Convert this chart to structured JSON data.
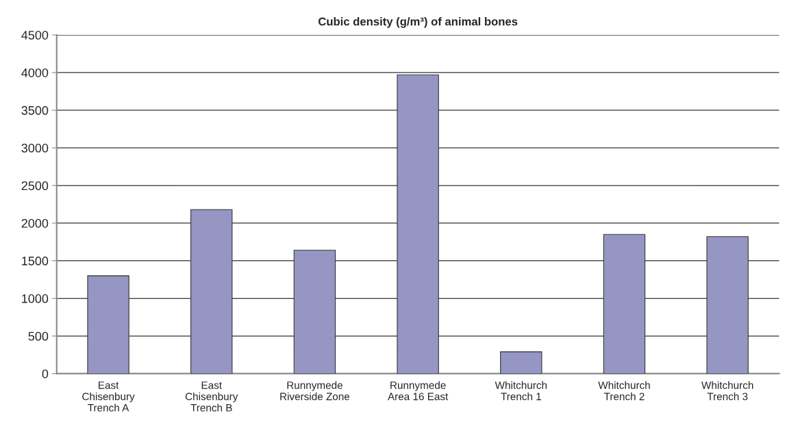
{
  "chart_data": {
    "type": "bar",
    "title": "Cubic density (g/m³) of animal bones",
    "categories": [
      "East\nChisenbury\nTrench A",
      "East\nChisenbury\nTrench B",
      "Runnymede\nRiverside Zone",
      "Runnymede\nArea 16 East",
      "Whitchurch\nTrench 1",
      "Whitchurch\nTrench 2",
      "Whitchurch\nTrench 3"
    ],
    "values": [
      1300,
      2180,
      1640,
      3970,
      290,
      1850,
      1820
    ],
    "color": "#9696c4",
    "ylim": [
      0,
      4500
    ],
    "yticks": [
      0,
      500,
      1000,
      1500,
      2000,
      2500,
      3000,
      3500,
      4000,
      4500
    ],
    "grid": "y",
    "legend": false
  }
}
